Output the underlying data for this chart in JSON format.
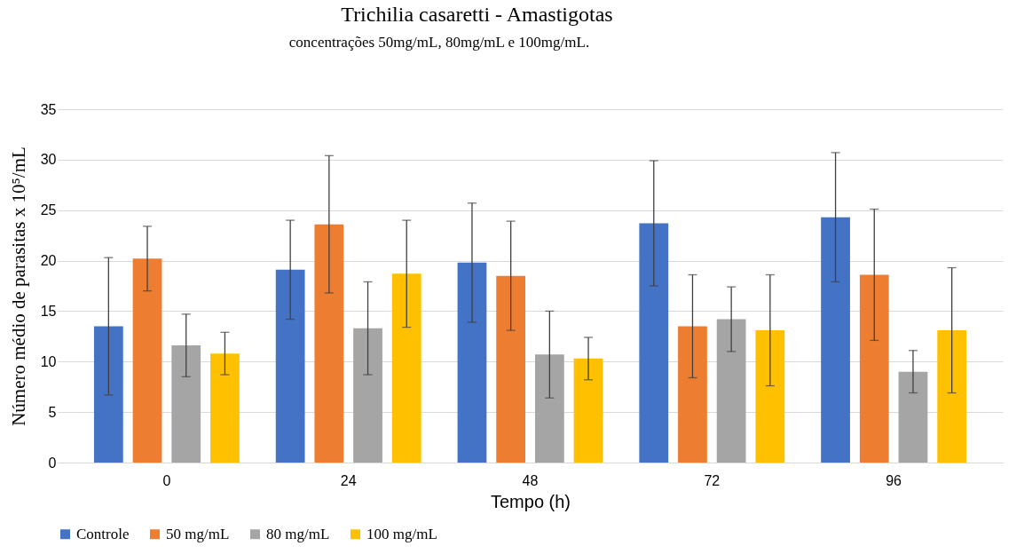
{
  "chart_data": {
    "type": "bar",
    "title": "Trichilia casaretti - Amastigotas",
    "xlabel": "Tempo (h)",
    "ylabel": "Número médio de parasitas x 10⁵/mL",
    "annotations": [
      "concentrações 50mg/mL, 80mg/mL e 100mg/mL."
    ],
    "categories": [
      "0",
      "24",
      "48",
      "72",
      "96"
    ],
    "series": [
      {
        "name": "Controle",
        "color": "#4472c4",
        "values": [
          13.5,
          19.1,
          19.8,
          23.7,
          24.3
        ],
        "errors": [
          [
            6.7,
            20.3
          ],
          [
            14.2,
            24.0
          ],
          [
            13.9,
            25.7
          ],
          [
            17.5,
            29.9
          ],
          [
            17.9,
            30.7
          ]
        ]
      },
      {
        "name": "50 mg/mL",
        "color": "#ed7d31",
        "values": [
          20.2,
          23.6,
          18.5,
          13.5,
          18.6
        ],
        "errors": [
          [
            17.0,
            23.4
          ],
          [
            16.8,
            30.4
          ],
          [
            13.1,
            23.9
          ],
          [
            8.4,
            18.6
          ],
          [
            12.1,
            25.1
          ]
        ]
      },
      {
        "name": "80 mg/mL",
        "color": "#a5a5a5",
        "values": [
          11.6,
          13.3,
          10.7,
          14.2,
          9.0
        ],
        "errors": [
          [
            8.5,
            14.7
          ],
          [
            8.7,
            17.9
          ],
          [
            6.4,
            15.0
          ],
          [
            11.0,
            17.4
          ],
          [
            6.9,
            11.1
          ]
        ]
      },
      {
        "name": "100 mg/mL",
        "color": "#ffc000",
        "values": [
          10.8,
          18.7,
          10.3,
          13.1,
          13.1
        ],
        "errors": [
          [
            8.7,
            12.9
          ],
          [
            13.4,
            24.0
          ],
          [
            8.2,
            12.4
          ],
          [
            7.6,
            18.6
          ],
          [
            6.9,
            19.3
          ]
        ]
      }
    ],
    "ylim": [
      0,
      35
    ],
    "yticks": [
      0,
      5,
      10,
      15,
      20,
      25,
      30,
      35
    ],
    "grid": "y",
    "legend": "bottom"
  }
}
